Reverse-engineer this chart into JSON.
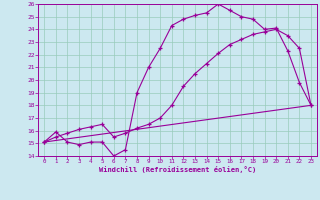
{
  "xlabel": "Windchill (Refroidissement éolien,°C)",
  "bg_color": "#cce8f0",
  "line_color": "#990099",
  "grid_color": "#99ccbb",
  "xlim": [
    -0.5,
    23.5
  ],
  "ylim": [
    14,
    26
  ],
  "xticks": [
    0,
    1,
    2,
    3,
    4,
    5,
    6,
    7,
    8,
    9,
    10,
    11,
    12,
    13,
    14,
    15,
    16,
    17,
    18,
    19,
    20,
    21,
    22,
    23
  ],
  "yticks": [
    14,
    15,
    16,
    17,
    18,
    19,
    20,
    21,
    22,
    23,
    24,
    25,
    26
  ],
  "line1_x": [
    0,
    1,
    2,
    3,
    4,
    5,
    6,
    7,
    8,
    9,
    10,
    11,
    12,
    13,
    14,
    15,
    16,
    17,
    18,
    19,
    20,
    21,
    22,
    23
  ],
  "line1_y": [
    15.1,
    15.9,
    15.1,
    14.9,
    15.1,
    15.1,
    14.0,
    14.5,
    19.0,
    21.0,
    22.5,
    24.3,
    24.8,
    25.1,
    25.3,
    26.0,
    25.5,
    25.0,
    24.8,
    24.0,
    24.1,
    22.3,
    19.8,
    18.0
  ],
  "line2_x": [
    0,
    1,
    2,
    3,
    4,
    5,
    6,
    7,
    8,
    9,
    10,
    11,
    12,
    13,
    14,
    15,
    16,
    17,
    18,
    19,
    20,
    21,
    22,
    23
  ],
  "line2_y": [
    15.1,
    15.5,
    15.8,
    16.1,
    16.3,
    16.5,
    15.5,
    15.8,
    16.2,
    16.5,
    17.0,
    18.0,
    19.5,
    20.5,
    21.3,
    22.1,
    22.8,
    23.2,
    23.6,
    23.8,
    24.0,
    23.5,
    22.5,
    18.0
  ],
  "line3_x": [
    0,
    23
  ],
  "line3_y": [
    15.1,
    18.0
  ],
  "marker": "+"
}
